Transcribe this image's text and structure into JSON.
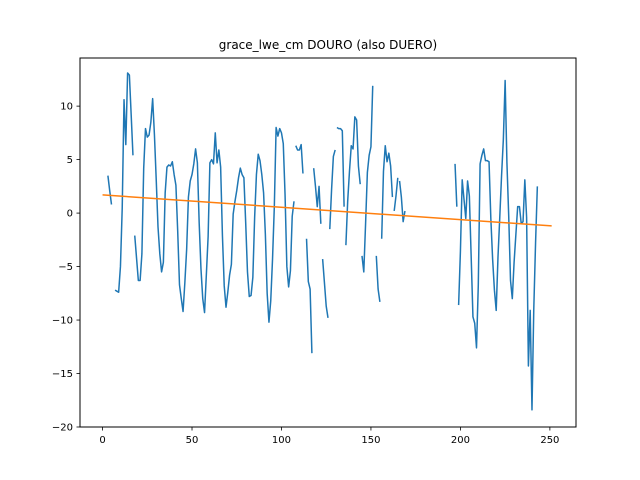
{
  "chart_data": {
    "type": "line",
    "title": "grace_lwe_cm DOURO (also DUERO)",
    "xlabel": "",
    "ylabel": "",
    "xlim": [
      -12.6,
      264.6
    ],
    "ylim": [
      -20,
      14.5
    ],
    "x_ticks": [
      0,
      50,
      100,
      150,
      200,
      250
    ],
    "y_ticks": [
      -20,
      -15,
      -10,
      -5,
      0,
      5,
      10
    ],
    "grid": false,
    "legend": "none",
    "series": [
      {
        "color": "#1f77b4",
        "segments": [
          [
            [
              3,
              3.5
            ],
            [
              4,
              2.1
            ],
            [
              5,
              0.8
            ]
          ],
          [
            [
              7,
              -7.2
            ],
            [
              8,
              -7.3
            ],
            [
              9,
              -7.4
            ],
            [
              10,
              -5.0
            ],
            [
              11,
              0.5
            ],
            [
              12,
              10.6
            ],
            [
              13,
              6.4
            ],
            [
              14,
              13.1
            ],
            [
              15,
              12.9
            ],
            [
              16,
              9.2
            ],
            [
              17,
              5.4
            ]
          ],
          [
            [
              18,
              -2.1
            ],
            [
              19,
              -4.2
            ],
            [
              20,
              -6.3
            ],
            [
              21,
              -6.3
            ],
            [
              22,
              -3.8
            ],
            [
              23,
              4.2
            ],
            [
              24,
              7.9
            ],
            [
              25,
              7.1
            ],
            [
              26,
              7.3
            ],
            [
              27,
              8.5
            ],
            [
              28,
              10.7
            ],
            [
              29,
              7.3
            ],
            [
              30,
              3.1
            ],
            [
              31,
              -1.3
            ],
            [
              32,
              -3.8
            ],
            [
              33,
              -5.5
            ],
            [
              34,
              -4.6
            ],
            [
              35,
              1.9
            ],
            [
              36,
              4.3
            ],
            [
              37,
              4.5
            ],
            [
              38,
              4.4
            ],
            [
              39,
              4.8
            ],
            [
              40,
              3.6
            ],
            [
              41,
              2.6
            ],
            [
              42,
              -1.7
            ],
            [
              43,
              -6.7
            ],
            [
              44,
              -8.0
            ],
            [
              45,
              -9.2
            ],
            [
              46,
              -6.5
            ],
            [
              47,
              -3.4
            ],
            [
              48,
              1.5
            ],
            [
              49,
              3.0
            ],
            [
              50,
              3.6
            ],
            [
              51,
              4.6
            ],
            [
              52,
              6.0
            ],
            [
              53,
              4.7
            ],
            [
              54,
              -0.9
            ],
            [
              55,
              -5.2
            ],
            [
              56,
              -8.0
            ],
            [
              57,
              -9.3
            ],
            [
              58,
              -5.8
            ],
            [
              59,
              -2.2
            ],
            [
              60,
              4.7
            ],
            [
              61,
              5.0
            ],
            [
              62,
              4.6
            ],
            [
              63,
              7.5
            ],
            [
              64,
              4.7
            ],
            [
              65,
              5.9
            ],
            [
              66,
              4.3
            ],
            [
              67,
              -2.1
            ],
            [
              68,
              -6.8
            ],
            [
              69,
              -8.8
            ],
            [
              70,
              -7.4
            ],
            [
              71,
              -5.8
            ],
            [
              72,
              -4.8
            ],
            [
              73,
              -0.1
            ],
            [
              74,
              1.1
            ],
            [
              75,
              2.1
            ],
            [
              76,
              3.3
            ],
            [
              77,
              4.2
            ],
            [
              78,
              3.6
            ],
            [
              79,
              3.3
            ],
            [
              80,
              -0.9
            ],
            [
              81,
              -5.5
            ],
            [
              82,
              -7.8
            ],
            [
              83,
              -7.7
            ],
            [
              84,
              -6.0
            ],
            [
              85,
              -0.4
            ],
            [
              86,
              3.6
            ],
            [
              87,
              5.5
            ],
            [
              88,
              4.9
            ],
            [
              89,
              3.6
            ],
            [
              90,
              1.9
            ],
            [
              91,
              -2.0
            ],
            [
              92,
              -7.5
            ],
            [
              93,
              -10.2
            ],
            [
              94,
              -8.2
            ],
            [
              95,
              -4.3
            ],
            [
              96,
              0.6
            ],
            [
              97,
              8.0
            ],
            [
              98,
              7.2
            ],
            [
              99,
              7.9
            ],
            [
              100,
              7.5
            ],
            [
              101,
              6.5
            ],
            [
              102,
              1.7
            ],
            [
              103,
              -5.0
            ],
            [
              104,
              -6.9
            ],
            [
              105,
              -5.4
            ],
            [
              106,
              -0.3
            ],
            [
              107,
              1.1
            ]
          ],
          [
            [
              108,
              6.3
            ],
            [
              109,
              5.9
            ],
            [
              110,
              5.9
            ],
            [
              111,
              6.4
            ],
            [
              112,
              3.7
            ]
          ],
          [
            [
              114,
              -2.4
            ],
            [
              115,
              -6.4
            ],
            [
              116,
              -7.1
            ],
            [
              117,
              -13.1
            ]
          ],
          [
            [
              118,
              4.2
            ],
            [
              119,
              2.5
            ],
            [
              120,
              0.6
            ],
            [
              121,
              2.5
            ],
            [
              122,
              -1.0
            ]
          ],
          [
            [
              123,
              -4.3
            ],
            [
              124,
              -6.5
            ],
            [
              125,
              -8.7
            ],
            [
              126,
              -9.8
            ]
          ],
          [
            [
              127,
              -1.5
            ],
            [
              128,
              2.2
            ],
            [
              129,
              5.3
            ],
            [
              130,
              5.9
            ]
          ],
          [
            [
              131,
              8.0
            ],
            [
              132,
              7.9
            ],
            [
              133,
              7.9
            ],
            [
              134,
              7.7
            ],
            [
              135,
              0.6
            ]
          ],
          [
            [
              136,
              -3.0
            ],
            [
              137,
              1.1
            ],
            [
              138,
              3.9
            ],
            [
              139,
              6.3
            ],
            [
              140,
              6.0
            ],
            [
              141,
              9.0
            ],
            [
              142,
              8.7
            ],
            [
              143,
              4.4
            ],
            [
              144,
              2.7
            ]
          ],
          [
            [
              145,
              -4.0
            ],
            [
              146,
              -5.5
            ],
            [
              147,
              -1.0
            ],
            [
              148,
              3.8
            ],
            [
              149,
              5.4
            ],
            [
              150,
              6.2
            ],
            [
              151,
              11.9
            ]
          ],
          [
            [
              153,
              -4.0
            ],
            [
              154,
              -7.1
            ],
            [
              155,
              -8.3
            ]
          ],
          [
            [
              156,
              -2.4
            ],
            [
              157,
              3.9
            ],
            [
              158,
              6.3
            ],
            [
              159,
              4.8
            ],
            [
              160,
              5.6
            ],
            [
              161,
              4.4
            ],
            [
              162,
              1.5
            ]
          ],
          [
            [
              163,
              0.2
            ],
            [
              164,
              1.6
            ],
            [
              165,
              3.3
            ]
          ],
          [
            [
              166,
              3.0
            ],
            [
              167,
              1.5
            ],
            [
              168,
              -0.8
            ],
            [
              169,
              0.2
            ]
          ],
          [
            [
              197,
              4.6
            ],
            [
              198,
              0.6
            ]
          ],
          [
            [
              199,
              -8.6
            ],
            [
              200,
              -3.6
            ],
            [
              201,
              3.1
            ],
            [
              202,
              1.3
            ],
            [
              203,
              -0.5
            ],
            [
              204,
              3.0
            ],
            [
              205,
              1.6
            ],
            [
              206,
              -4.0
            ],
            [
              207,
              -9.7
            ],
            [
              208,
              -10.3
            ],
            [
              209,
              -12.6
            ],
            [
              210,
              -6.7
            ],
            [
              211,
              4.6
            ],
            [
              212,
              5.4
            ],
            [
              213,
              6.0
            ],
            [
              214,
              4.9
            ],
            [
              215,
              4.9
            ],
            [
              216,
              4.8
            ],
            [
              217,
              -0.5
            ],
            [
              218,
              -4.3
            ],
            [
              219,
              -7.2
            ],
            [
              220,
              -9.1
            ],
            [
              221,
              -4.1
            ],
            [
              222,
              -0.4
            ],
            [
              223,
              3.5
            ],
            [
              224,
              6.9
            ],
            [
              225,
              12.4
            ],
            [
              226,
              4.7
            ],
            [
              227,
              -0.3
            ],
            [
              228,
              -6.3
            ],
            [
              229,
              -8.0
            ],
            [
              230,
              -4.6
            ],
            [
              231,
              -2.0
            ],
            [
              232,
              0.6
            ],
            [
              233,
              0.6
            ],
            [
              234,
              -1.0
            ],
            [
              235,
              -0.8
            ],
            [
              236,
              3.1
            ],
            [
              237,
              -0.4
            ],
            [
              238,
              -14.3
            ],
            [
              239,
              -9.1
            ],
            [
              240,
              -18.4
            ],
            [
              241,
              -9.0
            ],
            [
              242,
              -2.8
            ],
            [
              243,
              2.5
            ]
          ]
        ]
      },
      {
        "color": "#ff7f0e",
        "points": [
          [
            0,
            1.7
          ],
          [
            251,
            -1.2
          ]
        ]
      }
    ]
  }
}
